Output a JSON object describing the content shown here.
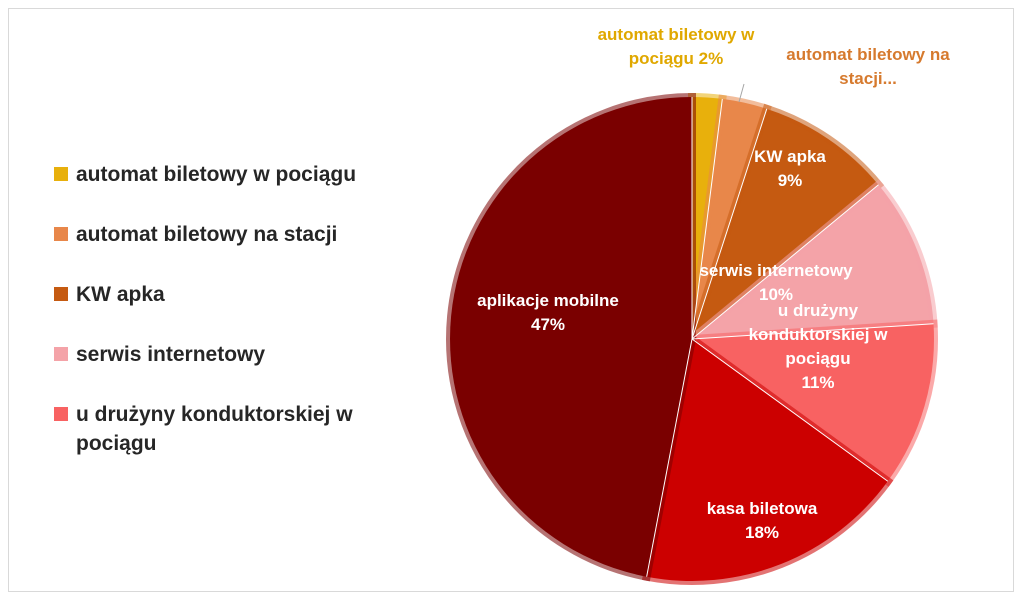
{
  "chart_data": {
    "type": "pie",
    "title": "",
    "slices": [
      {
        "name": "automat biletowy w pociągu",
        "value": 2,
        "color": "#E8B00C",
        "label_lines": [
          "automat biletowy w",
          "pociągu 2%"
        ],
        "label_color": "#E0A800"
      },
      {
        "name": "automat biletowy na stacji",
        "value": 3,
        "color": "#E8874A",
        "label_lines": [
          "automat biletowy na",
          "stacji..."
        ],
        "label_color": "#D67A2E"
      },
      {
        "name": "KW apka",
        "value": 9,
        "color": "#C55A11",
        "label_lines": [
          "KW apka",
          "9%"
        ],
        "label_color": "#ffffff"
      },
      {
        "name": "serwis internetowy",
        "value": 10,
        "color": "#F4A3A8",
        "label_lines": [
          "serwis internetowy",
          "10%"
        ],
        "label_color": "#ffffff"
      },
      {
        "name": "u drużyny konduktorskiej w pociągu",
        "value": 11,
        "color": "#F86262",
        "label_lines": [
          "u drużyny",
          "konduktorskiej w",
          "pociągu",
          "11%"
        ],
        "label_color": "#ffffff"
      },
      {
        "name": "kasa biletowa",
        "value": 18,
        "color": "#CC0000",
        "label_lines": [
          "kasa biletowa",
          "18%"
        ],
        "label_color": "#ffffff"
      },
      {
        "name": "aplikacje mobilne",
        "value": 47,
        "color": "#7A0000",
        "label_lines": [
          "aplikacje mobilne",
          "47%"
        ],
        "label_color": "#ffffff"
      }
    ],
    "legend": {
      "placement": "left",
      "entries": [
        {
          "label": "automat biletowy w pociągu",
          "color": "#E8B00C"
        },
        {
          "label": "automat biletowy na stacji",
          "color": "#E8874A"
        },
        {
          "label": "KW apka",
          "color": "#C55A11"
        },
        {
          "label": "serwis internetowy",
          "color": "#F4A3A8"
        },
        {
          "label": "u drużyny konduktorskiej w pociągu",
          "color": "#F86262"
        }
      ]
    }
  }
}
